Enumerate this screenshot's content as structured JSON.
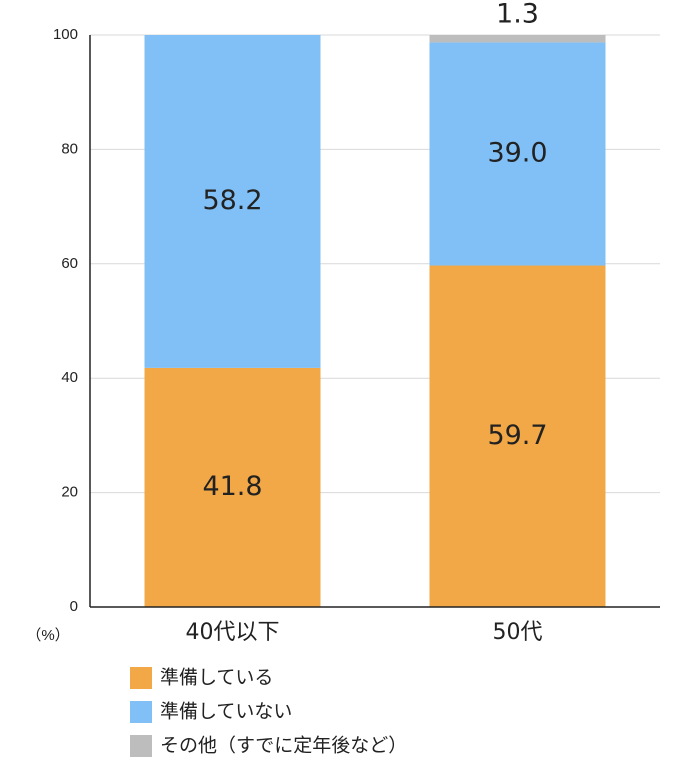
{
  "chart_data": {
    "type": "stacked_bar",
    "categories": [
      "40代以下",
      "50代"
    ],
    "series": [
      {
        "name": "準備している",
        "color": "#f2a846",
        "values": [
          41.8,
          59.7
        ]
      },
      {
        "name": "準備していない",
        "color": "#80c0f6",
        "values": [
          58.2,
          39.0
        ]
      },
      {
        "name": "その他（すでに定年後など）",
        "color": "#bdbdbd",
        "values": [
          null,
          1.3
        ]
      }
    ],
    "ylim": [
      0,
      100
    ],
    "yticks": [
      0,
      20,
      40,
      60,
      80,
      100
    ],
    "grid": true,
    "y_unit": "（%）",
    "value_labels": [
      [
        "41.8",
        "59.7"
      ],
      [
        "58.2",
        "39.0"
      ],
      [
        null,
        "1.3"
      ]
    ]
  }
}
